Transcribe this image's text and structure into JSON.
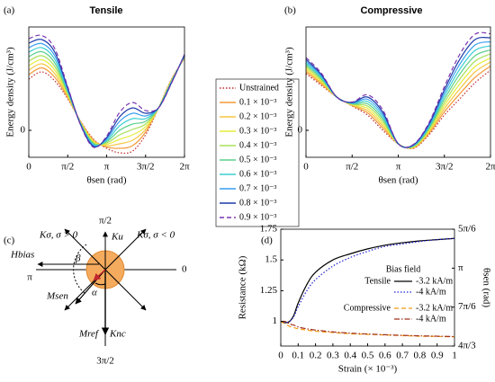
{
  "chart_data": [
    {
      "type": "line",
      "panel_label": "(a)",
      "title": "Tensile",
      "y_label": "Energy density (J/cm³)",
      "x_label": "θsen (rad)",
      "x": [
        0,
        0.5236,
        1.0472,
        1.5708,
        2.0944,
        2.618,
        3.1416,
        3.6652,
        4.1888,
        4.7124,
        5.236,
        5.7596,
        6.2832
      ],
      "xlim": [
        0,
        6.2832
      ],
      "xticks": [
        0,
        {
          "value": 1.5708,
          "label": "π/2"
        },
        {
          "value": 3.1416,
          "label": "π"
        },
        {
          "value": 4.7124,
          "label": "3π/2"
        },
        {
          "value": 6.2832,
          "label": "2π"
        }
      ],
      "ylim": [
        -0.6,
        2.3
      ],
      "yticks": [
        0
      ],
      "legend": "outside right",
      "series": [
        {
          "name": "Unstrained",
          "color": "#c0282d",
          "line_style": "dotted",
          "values": [
            1.14,
            1.3,
            1.1,
            0.7,
            0.2,
            -0.2,
            -0.4,
            -0.5,
            -0.46,
            -0.1,
            0.5,
            1.14,
            1.6
          ]
        },
        {
          "name": "0.1 × 10⁻³",
          "color": "#f39a3a",
          "line_style": "solid",
          "values": [
            1.24,
            1.39,
            1.18,
            0.73,
            0.19,
            -0.22,
            -0.37,
            -0.4,
            -0.34,
            -0.04,
            0.5,
            1.13,
            1.61
          ]
        },
        {
          "name": "0.2 × 10⁻³",
          "color": "#f6c640",
          "line_style": "solid",
          "values": [
            1.34,
            1.48,
            1.26,
            0.76,
            0.18,
            -0.24,
            -0.34,
            -0.3,
            -0.22,
            0.02,
            0.5,
            1.12,
            1.62
          ]
        },
        {
          "name": "0.3 × 10⁻³",
          "color": "#e6ec3c",
          "line_style": "solid",
          "values": [
            1.44,
            1.57,
            1.34,
            0.79,
            0.17,
            -0.26,
            -0.31,
            -0.2,
            -0.1,
            0.08,
            0.5,
            1.11,
            1.63
          ]
        },
        {
          "name": "0.4 × 10⁻³",
          "color": "#a8e05a",
          "line_style": "solid",
          "values": [
            1.54,
            1.66,
            1.42,
            0.82,
            0.16,
            -0.28,
            -0.28,
            -0.1,
            0.02,
            0.14,
            0.5,
            1.1,
            1.64
          ]
        },
        {
          "name": "0.5 × 10⁻³",
          "color": "#5cd08c",
          "line_style": "solid",
          "values": [
            1.64,
            1.75,
            1.5,
            0.85,
            0.15,
            -0.3,
            -0.25,
            0,
            0.14,
            0.2,
            0.5,
            1.09,
            1.65
          ]
        },
        {
          "name": "0.6 × 10⁻³",
          "color": "#3ccfd2",
          "line_style": "solid",
          "values": [
            1.74,
            1.84,
            1.58,
            0.88,
            0.14,
            -0.32,
            -0.22,
            0.1,
            0.26,
            0.26,
            0.5,
            1.08,
            1.66
          ]
        },
        {
          "name": "0.7 × 10⁻³",
          "color": "#3a9ef0",
          "line_style": "solid",
          "values": [
            1.84,
            1.93,
            1.66,
            0.91,
            0.13,
            -0.34,
            -0.19,
            0.2,
            0.38,
            0.32,
            0.5,
            1.07,
            1.67
          ]
        },
        {
          "name": "0.8 × 10⁻³",
          "color": "#1f3aa8",
          "line_style": "solid",
          "values": [
            1.94,
            2.02,
            1.74,
            0.94,
            0.12,
            -0.36,
            -0.16,
            0.3,
            0.5,
            0.38,
            0.5,
            1.06,
            1.68
          ]
        },
        {
          "name": "0.9 × 10⁻³",
          "color": "#7a35b0",
          "line_style": "dashed",
          "values": [
            2.04,
            2.11,
            1.82,
            0.97,
            0.11,
            -0.38,
            -0.13,
            0.4,
            0.62,
            0.44,
            0.5,
            1.05,
            1.69
          ]
        }
      ]
    },
    {
      "type": "line",
      "panel_label": "(b)",
      "title": "Compressive",
      "y_label": "Energy density (J/cm³)",
      "x_label": "θsen (rad)",
      "x": [
        0,
        0.5236,
        1.0472,
        1.5708,
        2.0944,
        2.618,
        3.1416,
        3.6652,
        4.1888,
        4.7124,
        5.236,
        5.7596,
        6.2832
      ],
      "xlim": [
        0,
        6.2832
      ],
      "xticks": [
        0,
        {
          "value": 1.5708,
          "label": "π/2"
        },
        {
          "value": 3.1416,
          "label": "π"
        },
        {
          "value": 4.7124,
          "label": "3π/2"
        },
        {
          "value": 6.2832,
          "label": "2π"
        }
      ],
      "ylim": [
        -0.6,
        2.3
      ],
      "yticks": [
        0
      ],
      "series": [
        {
          "color": "#c0282d",
          "line_style": "dotted",
          "values": [
            1.26,
            1.0,
            0.74,
            0.54,
            0.34,
            0,
            -0.3,
            -0.4,
            -0.1,
            0.34,
            0.7,
            1.06,
            1.34
          ]
        },
        {
          "color": "#f39a3a",
          "line_style": "solid",
          "values": [
            1.3,
            1.03,
            0.74,
            0.55,
            0.39,
            0.05,
            -0.3,
            -0.39,
            -0.07,
            0.41,
            0.81,
            1.18,
            1.43
          ]
        },
        {
          "color": "#f6c640",
          "line_style": "solid",
          "values": [
            1.34,
            1.06,
            0.74,
            0.56,
            0.44,
            0.1,
            -0.3,
            -0.38,
            -0.04,
            0.48,
            0.92,
            1.3,
            1.52
          ]
        },
        {
          "color": "#e6ec3c",
          "line_style": "solid",
          "values": [
            1.38,
            1.09,
            0.74,
            0.57,
            0.49,
            0.15,
            -0.3,
            -0.37,
            -0.01,
            0.55,
            1.03,
            1.42,
            1.61
          ]
        },
        {
          "color": "#a8e05a",
          "line_style": "solid",
          "values": [
            1.42,
            1.12,
            0.74,
            0.58,
            0.54,
            0.2,
            -0.3,
            -0.36,
            0.02,
            0.62,
            1.14,
            1.54,
            1.7
          ]
        },
        {
          "color": "#5cd08c",
          "line_style": "solid",
          "values": [
            1.46,
            1.15,
            0.74,
            0.59,
            0.59,
            0.25,
            -0.3,
            -0.35,
            0.05,
            0.69,
            1.25,
            1.66,
            1.79
          ]
        },
        {
          "color": "#3ccfd2",
          "line_style": "solid",
          "values": [
            1.5,
            1.18,
            0.74,
            0.6,
            0.64,
            0.3,
            -0.3,
            -0.34,
            0.08,
            0.76,
            1.36,
            1.78,
            1.88
          ]
        },
        {
          "color": "#3a9ef0",
          "line_style": "solid",
          "values": [
            1.54,
            1.21,
            0.74,
            0.61,
            0.69,
            0.35,
            -0.3,
            -0.33,
            0.11,
            0.83,
            1.47,
            1.9,
            1.97
          ]
        },
        {
          "color": "#1f3aa8",
          "line_style": "solid",
          "values": [
            1.58,
            1.24,
            0.74,
            0.62,
            0.74,
            0.4,
            -0.3,
            -0.32,
            0.14,
            0.9,
            1.58,
            2.02,
            2.06
          ]
        },
        {
          "color": "#7a35b0",
          "line_style": "dashed",
          "values": [
            1.62,
            1.27,
            0.74,
            0.63,
            0.79,
            0.45,
            -0.3,
            -0.31,
            0.17,
            0.97,
            1.69,
            2.14,
            2.15
          ]
        }
      ]
    },
    {
      "type": "line",
      "panel_label": "(d)",
      "y_label": "Resistance (kΩ)",
      "x_label": "Strain (× 10⁻³)",
      "y2_label": "θsen (rad)",
      "x": [
        0,
        0.025,
        0.05,
        0.075,
        0.1,
        0.15,
        0.2,
        0.3,
        0.4,
        0.5,
        0.6,
        0.7,
        0.8,
        0.9,
        1
      ],
      "xlim": [
        0,
        1
      ],
      "xticks": [
        0,
        0.1,
        0.2,
        0.3,
        0.4,
        0.5,
        0.6,
        0.7,
        0.8,
        0.9,
        1
      ],
      "ylim": [
        0.8,
        1.75
      ],
      "yticks": [
        1,
        1.25,
        1.5,
        1.75
      ],
      "y2lim": [
        4.1888,
        2.618
      ],
      "y2ticks": [
        {
          "value": 2.618,
          "label": "5π/6"
        },
        {
          "value": 3.1416,
          "label": "π"
        },
        {
          "value": 3.6652,
          "label": "7π/6"
        },
        {
          "value": 4.1888,
          "label": "4π/3"
        }
      ],
      "legend": "center right",
      "legend_title": "Bias field",
      "series": [
        {
          "group": "Tensile",
          "name": "-3.2 kA/m",
          "color": "#000000",
          "line_style": "solid",
          "values": [
            1.0,
            0.99,
            1.0,
            1.05,
            1.15,
            1.3,
            1.4,
            1.5,
            1.55,
            1.59,
            1.62,
            1.64,
            1.655,
            1.665,
            1.675
          ]
        },
        {
          "name": "-4 kA/m",
          "color": "#2020d0",
          "line_style": "dotted",
          "values": [
            1.0,
            0.99,
            1.0,
            1.04,
            1.12,
            1.25,
            1.34,
            1.45,
            1.52,
            1.57,
            1.61,
            1.63,
            1.65,
            1.665,
            1.675
          ]
        },
        {
          "group": "Compressive",
          "name": "-3.2 kA/m",
          "color": "#f39c12",
          "line_style": "dashed",
          "values": [
            1.0,
            0.98,
            0.96,
            0.95,
            0.94,
            0.93,
            0.92,
            0.91,
            0.9,
            0.895,
            0.89,
            0.885,
            0.88,
            0.878,
            0.875
          ]
        },
        {
          "name": "-4 kA/m",
          "color": "#a0301c",
          "line_style": "dashdot",
          "values": [
            1.0,
            1.0,
            0.98,
            0.97,
            0.955,
            0.94,
            0.93,
            0.915,
            0.905,
            0.898,
            0.892,
            0.887,
            0.883,
            0.88,
            0.877
          ]
        }
      ]
    }
  ],
  "diagram": {
    "panel_label": "(c)",
    "labels": {
      "up": "π/2",
      "right": "0",
      "left": "π",
      "down": "3π/2",
      "k_pos": "Kσ, σ > 0",
      "k_u": "Ku",
      "k_neg": "Kσ, σ < 0",
      "h_bias": "Hbias",
      "beta": "β",
      "m_sen": "Msen",
      "alpha": "α",
      "m_ref": "Mref",
      "k_nc": "Knc"
    }
  }
}
